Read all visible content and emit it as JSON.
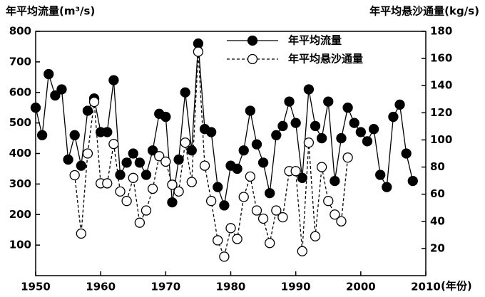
{
  "chart_data": {
    "type": "line",
    "y_title": "年平均流量(m³/s)",
    "y2_title": "年平均悬沙通量(kg/s)",
    "x_title": "(年份)",
    "x": [
      1950,
      1951,
      1952,
      1953,
      1954,
      1955,
      1956,
      1957,
      1958,
      1959,
      1960,
      1961,
      1962,
      1963,
      1964,
      1965,
      1966,
      1967,
      1968,
      1969,
      1970,
      1971,
      1972,
      1973,
      1974,
      1975,
      1976,
      1977,
      1978,
      1979,
      1980,
      1981,
      1982,
      1983,
      1984,
      1985,
      1986,
      1987,
      1988,
      1989,
      1990,
      1991,
      1992,
      1993,
      1994,
      1995,
      1996,
      1997,
      1998,
      1999,
      2000,
      2001,
      2002,
      2003,
      2004,
      2005,
      2006,
      2007,
      2008
    ],
    "series": [
      {
        "name": "年平均流量",
        "color": "#000000",
        "style": "solid",
        "marker": "filled",
        "values": [
          550,
          460,
          660,
          590,
          610,
          380,
          460,
          360,
          540,
          580,
          470,
          470,
          640,
          330,
          370,
          400,
          370,
          330,
          410,
          530,
          520,
          240,
          380,
          600,
          410,
          760,
          480,
          470,
          290,
          230,
          360,
          350,
          410,
          540,
          430,
          370,
          270,
          460,
          490,
          570,
          500,
          320,
          610,
          490,
          450,
          570,
          310,
          450,
          550,
          500,
          470,
          440,
          480,
          330,
          290,
          520,
          560,
          400,
          310
        ]
      },
      {
        "name": "年平均悬沙通量",
        "color": "#000000",
        "style": "dashed",
        "marker": "open",
        "axis": "y2",
        "values": [
          null,
          null,
          null,
          null,
          null,
          null,
          74,
          31,
          90,
          128,
          68,
          68,
          97,
          62,
          55,
          72,
          39,
          48,
          64,
          88,
          84,
          67,
          62,
          98,
          69,
          165,
          81,
          55,
          26,
          14,
          35,
          27,
          58,
          73,
          48,
          42,
          24,
          48,
          43,
          77,
          77,
          18,
          98,
          29,
          80,
          55,
          45,
          40,
          87,
          null,
          null,
          null,
          null,
          null,
          null,
          null,
          null,
          null,
          null
        ]
      }
    ],
    "xlim": [
      1950,
      2010
    ],
    "xticks": [
      1950,
      1960,
      1970,
      1980,
      1990,
      2000,
      2010
    ],
    "ylim": [
      0,
      800
    ],
    "yticks": [
      100,
      200,
      300,
      400,
      500,
      600,
      700,
      800
    ],
    "y2lim": [
      0,
      180
    ],
    "y2ticks": [
      20,
      40,
      60,
      80,
      100,
      120,
      140,
      160,
      180
    ],
    "grid": false,
    "legend": "upper right"
  }
}
